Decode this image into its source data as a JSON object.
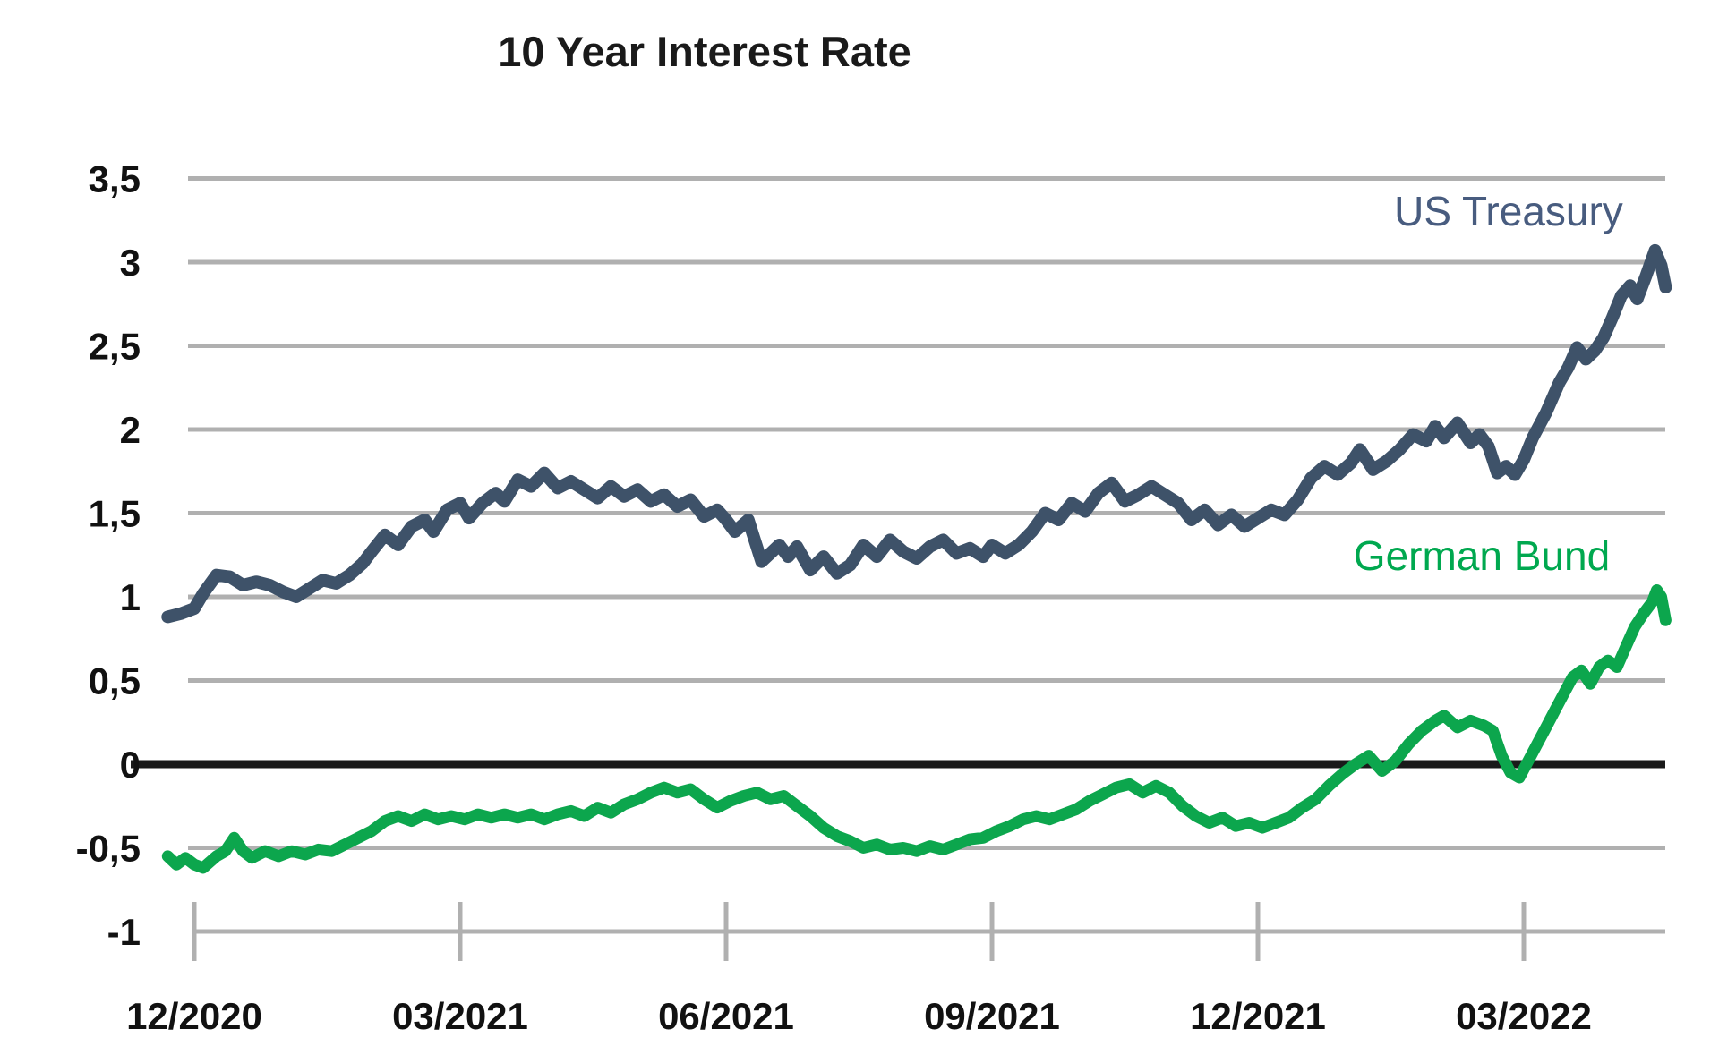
{
  "title": "10 Year Interest Rate",
  "chart_data": {
    "type": "line",
    "title": "10 Year Interest Rate",
    "x_tick_labels": [
      "12/2020",
      "03/2021",
      "06/2021",
      "09/2021",
      "12/2021",
      "03/2022"
    ],
    "x_tick_months": [
      0,
      3,
      6,
      9,
      12,
      15
    ],
    "x_range_months": [
      -0.3,
      16.6
    ],
    "ylim": [
      -1,
      3.5
    ],
    "y_tick_values": [
      3.5,
      3,
      2.5,
      2,
      1.5,
      1,
      0.5,
      0,
      -0.5,
      -1
    ],
    "y_tick_labels": [
      "3,5",
      "3",
      "2,5",
      "2",
      "1,5",
      "1",
      "0,5",
      "0",
      "-0,5",
      "-1"
    ],
    "grid": "horizontal-only",
    "zero_line": true,
    "legend_position": "inline-labels-right",
    "series": [
      {
        "name": "US Treasury",
        "color": "#3e5269",
        "label_color": "#485c7f",
        "stroke_width": 14,
        "points": [
          [
            -0.3,
            0.88
          ],
          [
            -0.15,
            0.9
          ],
          [
            0.0,
            0.93
          ],
          [
            0.1,
            1.02
          ],
          [
            0.25,
            1.13
          ],
          [
            0.4,
            1.12
          ],
          [
            0.55,
            1.07
          ],
          [
            0.7,
            1.09
          ],
          [
            0.85,
            1.07
          ],
          [
            1.0,
            1.03
          ],
          [
            1.15,
            1.0
          ],
          [
            1.3,
            1.05
          ],
          [
            1.45,
            1.1
          ],
          [
            1.6,
            1.08
          ],
          [
            1.75,
            1.13
          ],
          [
            1.9,
            1.2
          ],
          [
            2.0,
            1.27
          ],
          [
            2.15,
            1.37
          ],
          [
            2.3,
            1.31
          ],
          [
            2.45,
            1.42
          ],
          [
            2.6,
            1.46
          ],
          [
            2.7,
            1.39
          ],
          [
            2.85,
            1.52
          ],
          [
            3.0,
            1.56
          ],
          [
            3.1,
            1.47
          ],
          [
            3.25,
            1.56
          ],
          [
            3.4,
            1.62
          ],
          [
            3.5,
            1.57
          ],
          [
            3.65,
            1.7
          ],
          [
            3.8,
            1.66
          ],
          [
            3.95,
            1.74
          ],
          [
            4.1,
            1.65
          ],
          [
            4.25,
            1.69
          ],
          [
            4.4,
            1.64
          ],
          [
            4.55,
            1.59
          ],
          [
            4.7,
            1.66
          ],
          [
            4.85,
            1.6
          ],
          [
            5.0,
            1.64
          ],
          [
            5.15,
            1.57
          ],
          [
            5.3,
            1.61
          ],
          [
            5.45,
            1.54
          ],
          [
            5.6,
            1.58
          ],
          [
            5.75,
            1.48
          ],
          [
            5.9,
            1.52
          ],
          [
            6.0,
            1.46
          ],
          [
            6.1,
            1.39
          ],
          [
            6.25,
            1.46
          ],
          [
            6.4,
            1.21
          ],
          [
            6.5,
            1.26
          ],
          [
            6.6,
            1.31
          ],
          [
            6.7,
            1.24
          ],
          [
            6.8,
            1.3
          ],
          [
            6.95,
            1.16
          ],
          [
            7.1,
            1.24
          ],
          [
            7.25,
            1.14
          ],
          [
            7.4,
            1.19
          ],
          [
            7.55,
            1.31
          ],
          [
            7.7,
            1.24
          ],
          [
            7.85,
            1.34
          ],
          [
            8.0,
            1.27
          ],
          [
            8.15,
            1.23
          ],
          [
            8.3,
            1.3
          ],
          [
            8.45,
            1.34
          ],
          [
            8.6,
            1.26
          ],
          [
            8.75,
            1.29
          ],
          [
            8.9,
            1.24
          ],
          [
            9.0,
            1.31
          ],
          [
            9.15,
            1.26
          ],
          [
            9.3,
            1.31
          ],
          [
            9.45,
            1.39
          ],
          [
            9.6,
            1.5
          ],
          [
            9.75,
            1.46
          ],
          [
            9.9,
            1.56
          ],
          [
            10.05,
            1.51
          ],
          [
            10.2,
            1.62
          ],
          [
            10.35,
            1.68
          ],
          [
            10.5,
            1.57
          ],
          [
            10.65,
            1.61
          ],
          [
            10.8,
            1.66
          ],
          [
            10.95,
            1.61
          ],
          [
            11.1,
            1.56
          ],
          [
            11.25,
            1.46
          ],
          [
            11.4,
            1.52
          ],
          [
            11.55,
            1.43
          ],
          [
            11.7,
            1.49
          ],
          [
            11.85,
            1.42
          ],
          [
            12.0,
            1.47
          ],
          [
            12.15,
            1.52
          ],
          [
            12.3,
            1.49
          ],
          [
            12.45,
            1.58
          ],
          [
            12.6,
            1.71
          ],
          [
            12.75,
            1.78
          ],
          [
            12.9,
            1.73
          ],
          [
            13.05,
            1.8
          ],
          [
            13.15,
            1.88
          ],
          [
            13.3,
            1.76
          ],
          [
            13.45,
            1.81
          ],
          [
            13.6,
            1.88
          ],
          [
            13.75,
            1.97
          ],
          [
            13.9,
            1.93
          ],
          [
            14.0,
            2.02
          ],
          [
            14.1,
            1.95
          ],
          [
            14.25,
            2.04
          ],
          [
            14.4,
            1.92
          ],
          [
            14.5,
            1.97
          ],
          [
            14.6,
            1.9
          ],
          [
            14.7,
            1.74
          ],
          [
            14.8,
            1.78
          ],
          [
            14.9,
            1.73
          ],
          [
            15.0,
            1.82
          ],
          [
            15.1,
            1.95
          ],
          [
            15.25,
            2.1
          ],
          [
            15.4,
            2.28
          ],
          [
            15.5,
            2.37
          ],
          [
            15.6,
            2.49
          ],
          [
            15.7,
            2.42
          ],
          [
            15.8,
            2.47
          ],
          [
            15.9,
            2.55
          ],
          [
            16.0,
            2.67
          ],
          [
            16.1,
            2.8
          ],
          [
            16.2,
            2.86
          ],
          [
            16.28,
            2.78
          ],
          [
            16.38,
            2.92
          ],
          [
            16.48,
            3.07
          ],
          [
            16.55,
            2.98
          ],
          [
            16.6,
            2.85
          ]
        ]
      },
      {
        "name": "German Bund",
        "color": "#0ca64d",
        "label_color": "#00a84f",
        "stroke_width": 13,
        "points": [
          [
            -0.3,
            -0.55
          ],
          [
            -0.2,
            -0.6
          ],
          [
            -0.1,
            -0.56
          ],
          [
            0.0,
            -0.6
          ],
          [
            0.1,
            -0.62
          ],
          [
            0.25,
            -0.55
          ],
          [
            0.35,
            -0.52
          ],
          [
            0.45,
            -0.44
          ],
          [
            0.55,
            -0.52
          ],
          [
            0.65,
            -0.56
          ],
          [
            0.8,
            -0.52
          ],
          [
            0.95,
            -0.55
          ],
          [
            1.1,
            -0.52
          ],
          [
            1.25,
            -0.54
          ],
          [
            1.4,
            -0.51
          ],
          [
            1.55,
            -0.52
          ],
          [
            1.7,
            -0.48
          ],
          [
            1.85,
            -0.44
          ],
          [
            2.0,
            -0.4
          ],
          [
            2.15,
            -0.34
          ],
          [
            2.3,
            -0.31
          ],
          [
            2.45,
            -0.34
          ],
          [
            2.6,
            -0.3
          ],
          [
            2.75,
            -0.33
          ],
          [
            2.9,
            -0.31
          ],
          [
            3.05,
            -0.33
          ],
          [
            3.2,
            -0.3
          ],
          [
            3.35,
            -0.32
          ],
          [
            3.5,
            -0.3
          ],
          [
            3.65,
            -0.32
          ],
          [
            3.8,
            -0.3
          ],
          [
            3.95,
            -0.33
          ],
          [
            4.1,
            -0.3
          ],
          [
            4.25,
            -0.28
          ],
          [
            4.4,
            -0.31
          ],
          [
            4.55,
            -0.26
          ],
          [
            4.7,
            -0.29
          ],
          [
            4.85,
            -0.24
          ],
          [
            5.0,
            -0.21
          ],
          [
            5.15,
            -0.17
          ],
          [
            5.3,
            -0.14
          ],
          [
            5.45,
            -0.17
          ],
          [
            5.6,
            -0.15
          ],
          [
            5.75,
            -0.21
          ],
          [
            5.9,
            -0.26
          ],
          [
            6.05,
            -0.22
          ],
          [
            6.2,
            -0.19
          ],
          [
            6.35,
            -0.17
          ],
          [
            6.5,
            -0.21
          ],
          [
            6.65,
            -0.19
          ],
          [
            6.8,
            -0.25
          ],
          [
            6.95,
            -0.31
          ],
          [
            7.1,
            -0.38
          ],
          [
            7.25,
            -0.43
          ],
          [
            7.4,
            -0.46
          ],
          [
            7.55,
            -0.5
          ],
          [
            7.7,
            -0.48
          ],
          [
            7.85,
            -0.51
          ],
          [
            8.0,
            -0.5
          ],
          [
            8.15,
            -0.52
          ],
          [
            8.3,
            -0.49
          ],
          [
            8.45,
            -0.51
          ],
          [
            8.6,
            -0.48
          ],
          [
            8.75,
            -0.45
          ],
          [
            8.9,
            -0.44
          ],
          [
            9.05,
            -0.4
          ],
          [
            9.2,
            -0.37
          ],
          [
            9.35,
            -0.33
          ],
          [
            9.5,
            -0.31
          ],
          [
            9.65,
            -0.33
          ],
          [
            9.8,
            -0.3
          ],
          [
            9.95,
            -0.27
          ],
          [
            10.1,
            -0.22
          ],
          [
            10.25,
            -0.18
          ],
          [
            10.4,
            -0.14
          ],
          [
            10.55,
            -0.12
          ],
          [
            10.7,
            -0.17
          ],
          [
            10.85,
            -0.13
          ],
          [
            11.0,
            -0.17
          ],
          [
            11.15,
            -0.25
          ],
          [
            11.3,
            -0.31
          ],
          [
            11.45,
            -0.35
          ],
          [
            11.6,
            -0.32
          ],
          [
            11.75,
            -0.37
          ],
          [
            11.9,
            -0.35
          ],
          [
            12.05,
            -0.38
          ],
          [
            12.2,
            -0.35
          ],
          [
            12.35,
            -0.32
          ],
          [
            12.5,
            -0.26
          ],
          [
            12.65,
            -0.21
          ],
          [
            12.8,
            -0.13
          ],
          [
            12.95,
            -0.06
          ],
          [
            13.1,
            0.0
          ],
          [
            13.25,
            0.05
          ],
          [
            13.4,
            -0.04
          ],
          [
            13.55,
            0.02
          ],
          [
            13.7,
            0.12
          ],
          [
            13.85,
            0.2
          ],
          [
            14.0,
            0.26
          ],
          [
            14.1,
            0.29
          ],
          [
            14.25,
            0.22
          ],
          [
            14.4,
            0.26
          ],
          [
            14.55,
            0.23
          ],
          [
            14.65,
            0.2
          ],
          [
            14.75,
            0.05
          ],
          [
            14.85,
            -0.05
          ],
          [
            14.95,
            -0.08
          ],
          [
            15.05,
            0.02
          ],
          [
            15.15,
            0.12
          ],
          [
            15.25,
            0.22
          ],
          [
            15.35,
            0.32
          ],
          [
            15.45,
            0.42
          ],
          [
            15.55,
            0.52
          ],
          [
            15.65,
            0.56
          ],
          [
            15.75,
            0.48
          ],
          [
            15.85,
            0.58
          ],
          [
            15.95,
            0.62
          ],
          [
            16.05,
            0.58
          ],
          [
            16.15,
            0.7
          ],
          [
            16.25,
            0.82
          ],
          [
            16.35,
            0.9
          ],
          [
            16.45,
            0.97
          ],
          [
            16.5,
            1.04
          ],
          [
            16.55,
            1.0
          ],
          [
            16.6,
            0.86
          ]
        ]
      }
    ]
  },
  "colors": {
    "background": "#ffffff",
    "gridline": "#b0b0b0",
    "zero_line": "#1a1a1a",
    "tick_label": "#111111",
    "us_treasury": "#3e5269",
    "german_bund": "#0ca64d"
  }
}
